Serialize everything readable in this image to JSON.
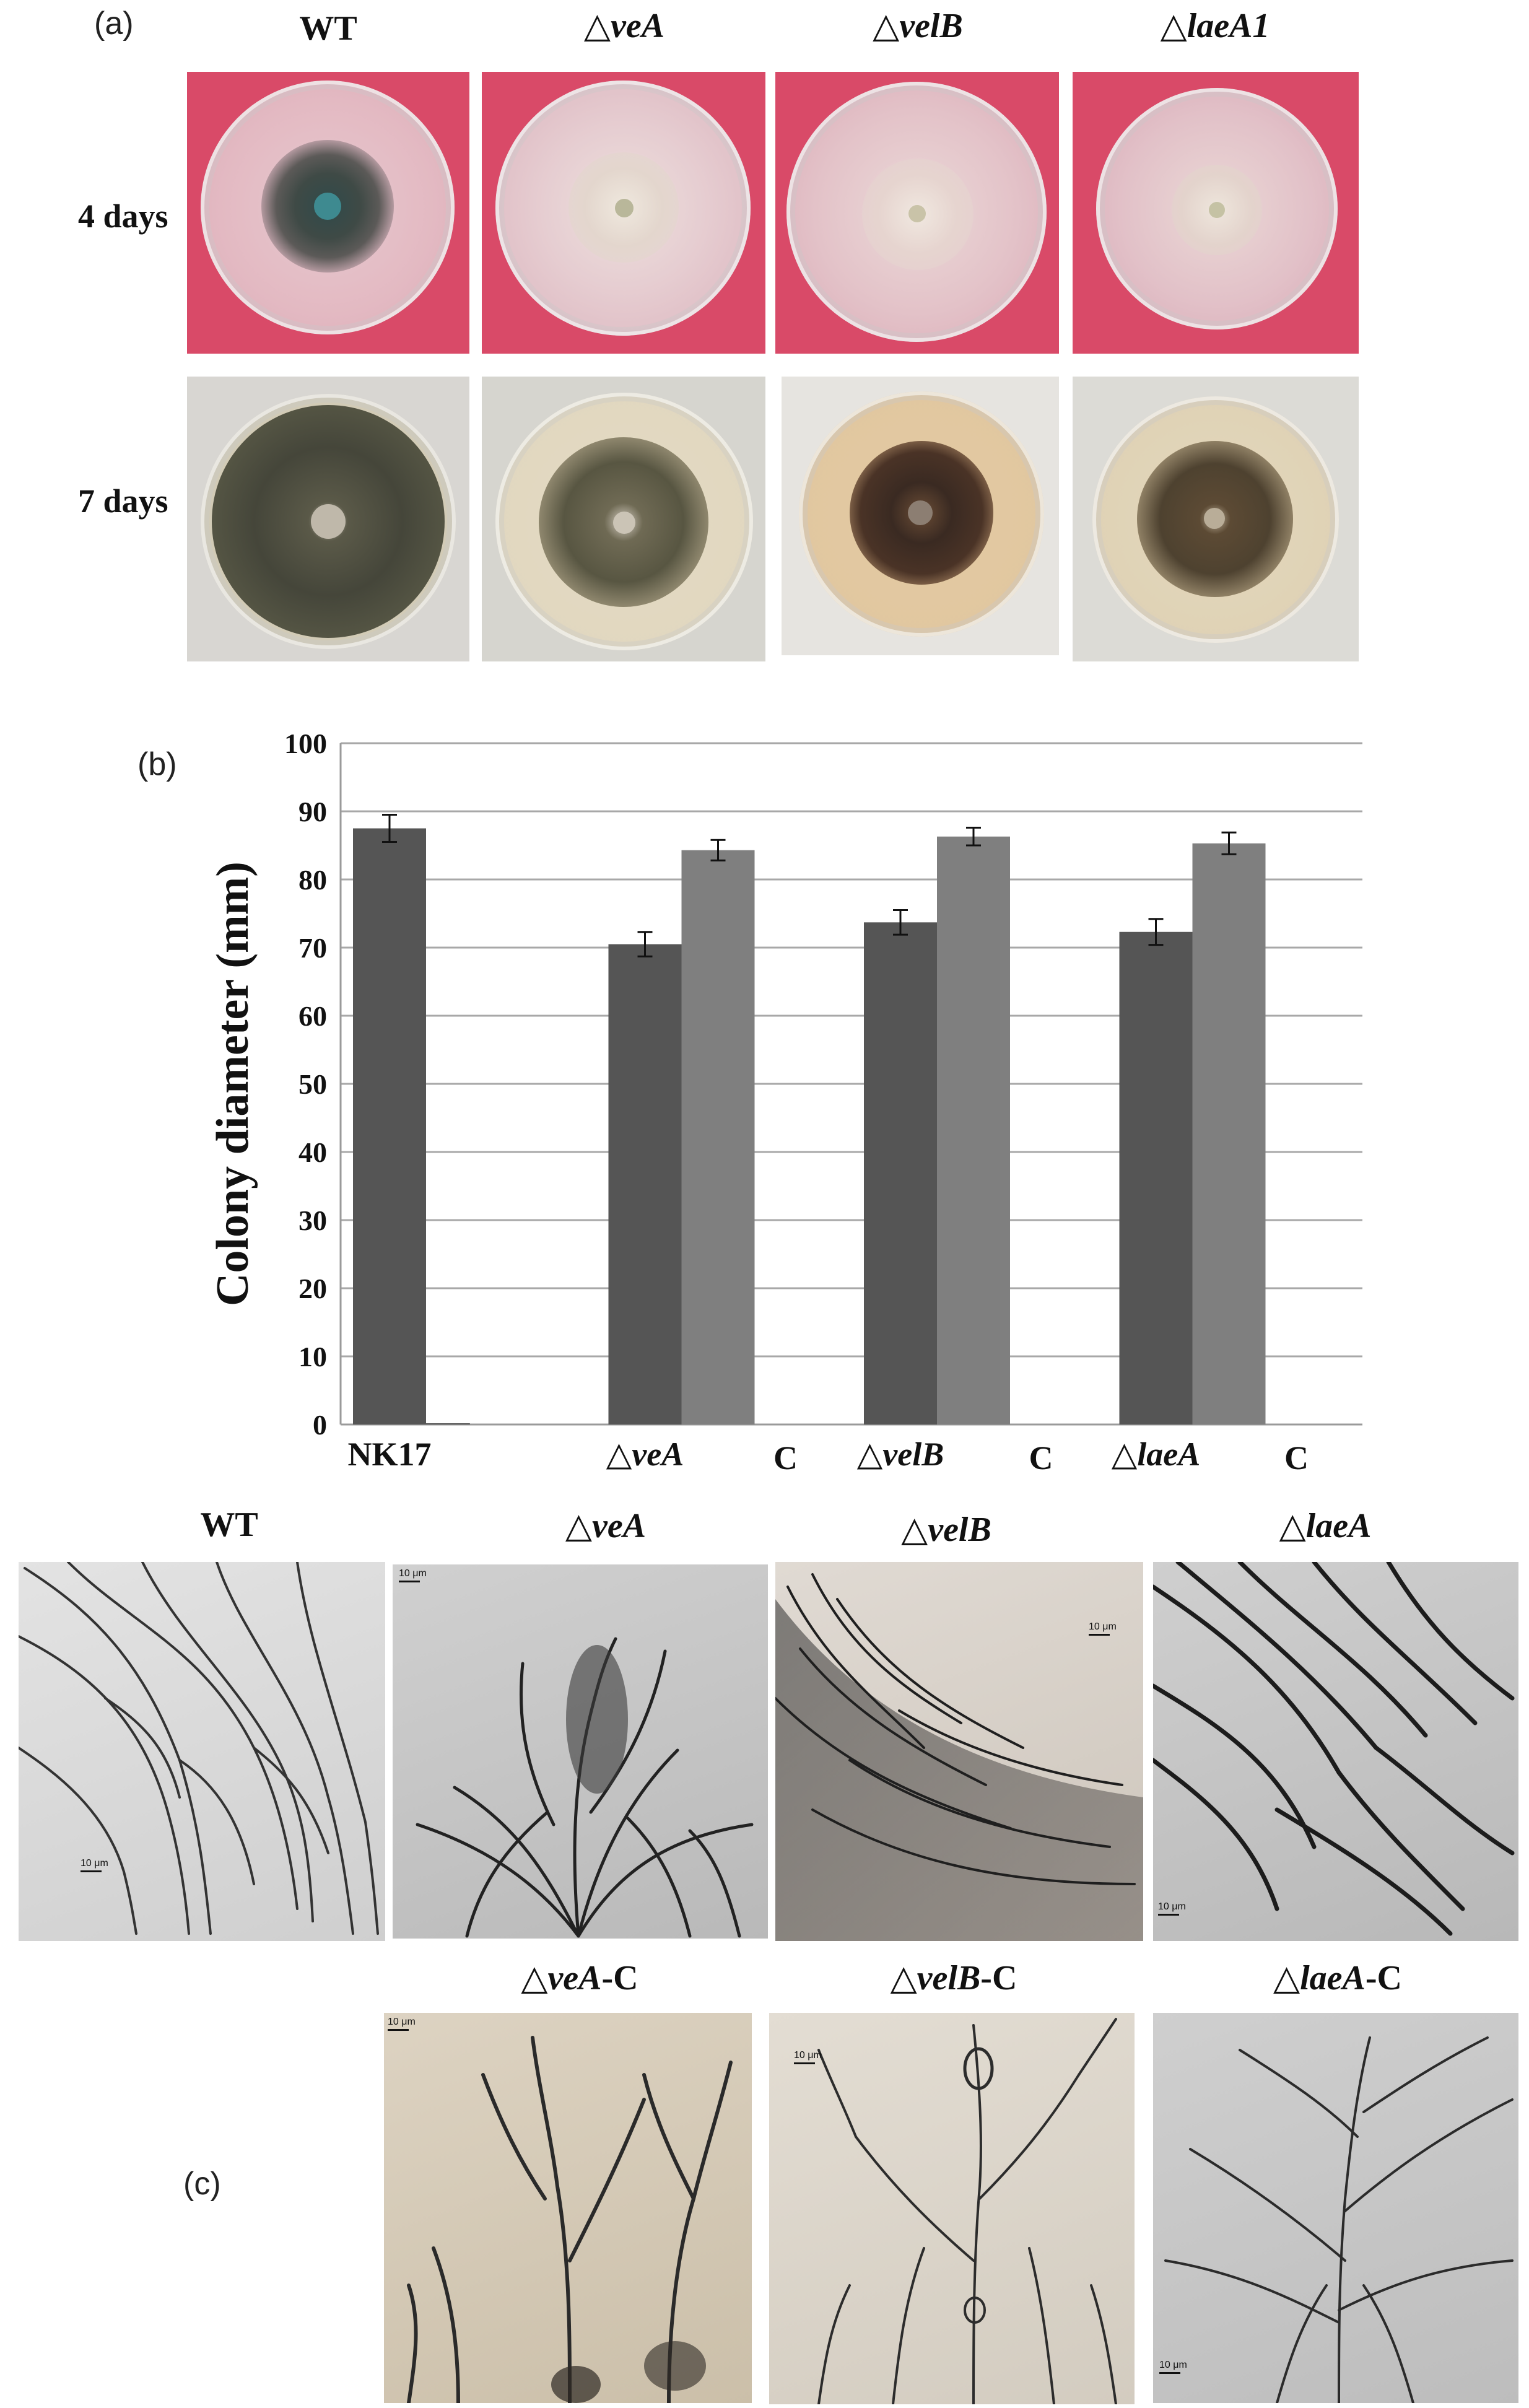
{
  "panel_labels": {
    "a": "(a)",
    "b": "(b)",
    "c": "(c)"
  },
  "panel_a": {
    "columns": [
      {
        "prefix": "",
        "name": "WT"
      },
      {
        "prefix": "△",
        "name": "veA"
      },
      {
        "prefix": "△",
        "name": "velB"
      },
      {
        "prefix": "△",
        "name": "laeA1"
      }
    ],
    "rows": [
      "4 days",
      "7 days"
    ]
  },
  "chart_data": {
    "type": "bar",
    "ylabel": "Colony diameter  (mm)",
    "ylim": [
      0,
      100
    ],
    "yticks": [
      0,
      10,
      20,
      30,
      40,
      50,
      60,
      70,
      80,
      90,
      100
    ],
    "grid": true,
    "groups": [
      {
        "label": "NK17",
        "italic": false,
        "c_label": ""
      },
      {
        "label": "△veA",
        "italic": true,
        "c_label": "C"
      },
      {
        "label": "△velB",
        "italic": true,
        "c_label": "C"
      },
      {
        "label": "△laeA",
        "italic": true,
        "c_label": "C"
      }
    ],
    "series": [
      {
        "color": "#555555",
        "values": [
          87.5,
          70.5,
          73.7,
          72.3
        ],
        "errors": [
          2.0,
          1.8,
          1.8,
          1.9
        ]
      },
      {
        "color": "#7f7f7f",
        "values": [
          null,
          84.3,
          86.3,
          85.3
        ],
        "errors": [
          null,
          1.5,
          1.3,
          1.6
        ]
      }
    ]
  },
  "panel_c": {
    "top": [
      {
        "prefix": "",
        "name": "WT",
        "suffix": ""
      },
      {
        "prefix": "△",
        "name": "veA",
        "suffix": ""
      },
      {
        "prefix": "△",
        "name": "velB",
        "suffix": ""
      },
      {
        "prefix": "△",
        "name": "laeA",
        "suffix": ""
      }
    ],
    "bottom": [
      {
        "prefix": "△",
        "name": "veA",
        "suffix": "-C"
      },
      {
        "prefix": "△",
        "name": "velB",
        "suffix": "-C"
      },
      {
        "prefix": "△",
        "name": "laeA",
        "suffix": "-C"
      }
    ],
    "scale_label": "10 μm"
  }
}
